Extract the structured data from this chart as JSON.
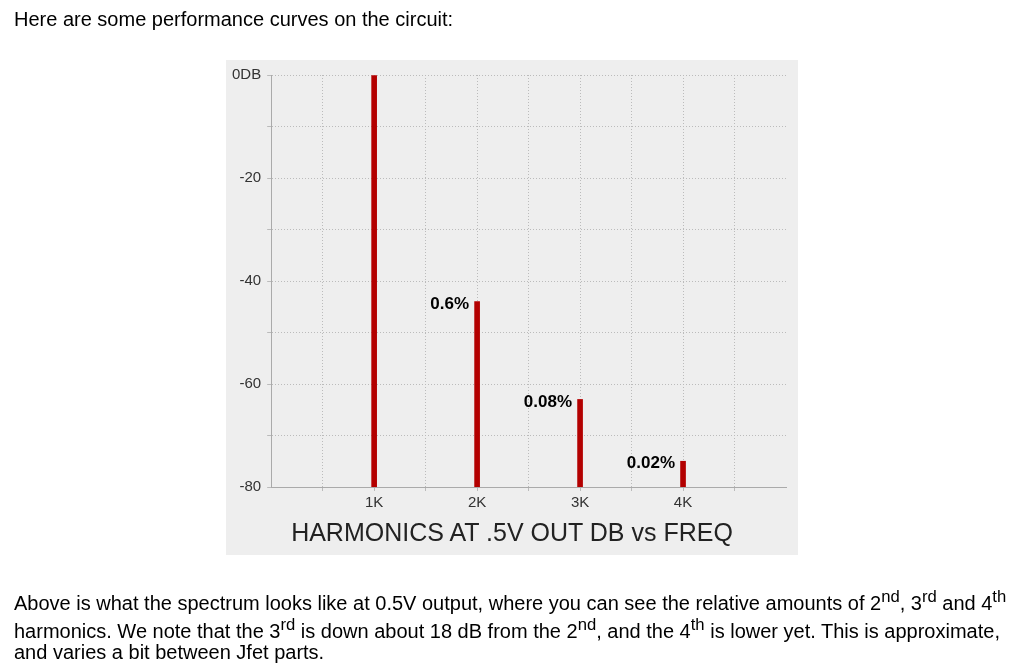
{
  "chart_data": {
    "type": "bar",
    "title": "Here are some performance curves on the circuit:",
    "xlabel": "HARMONICS AT .5V OUT  DB vs FREQ",
    "x": [
      1,
      2,
      3,
      4
    ],
    "base": [
      -80,
      -80,
      -80,
      -80
    ],
    "values": [
      80,
      36,
      17,
      5
    ],
    "color": "#b30000",
    "xlim": [
      0,
      5
    ],
    "xticks": [
      {
        "value": 0.5,
        "label": null
      },
      {
        "value": 1,
        "label": "1K"
      },
      {
        "value": 1.5,
        "label": null
      },
      {
        "value": 2,
        "label": "2K"
      },
      {
        "value": 2.5,
        "label": null
      },
      {
        "value": 3,
        "label": "3K"
      },
      {
        "value": 3.5,
        "label": null
      },
      {
        "value": 4,
        "label": "4K"
      },
      {
        "value": 4.5,
        "label": null
      }
    ],
    "ylim": [
      -80,
      0
    ],
    "yticks": [
      -80,
      {
        "value": -70,
        "label": null
      },
      -60,
      {
        "value": -50,
        "label": null
      },
      -40,
      {
        "value": -30,
        "label": null
      },
      -20,
      {
        "value": -10,
        "label": null
      },
      {
        "value": 0,
        "label": "0DB"
      }
    ],
    "grid": true,
    "annotations": [
      {
        "text": "0.6%",
        "x": 2,
        "y": -44
      },
      {
        "text": "0.08%",
        "x": 3,
        "y": -63
      },
      {
        "text": "0.02%",
        "x": 4,
        "y": -75
      },
      "Above is what the spectrum looks like at 0.5V output, where you can see the relative amounts of 2$^{nd}$, 3$^{rd}$ and 4$^{th}$ harmonics.  We note that the 3$^{rd}$ is down about 18 dB from the 2$^{nd}$, and the 4$^{th}$ is lower yet. This is approximate, and varies a bit between Jfet parts."
    ]
  }
}
